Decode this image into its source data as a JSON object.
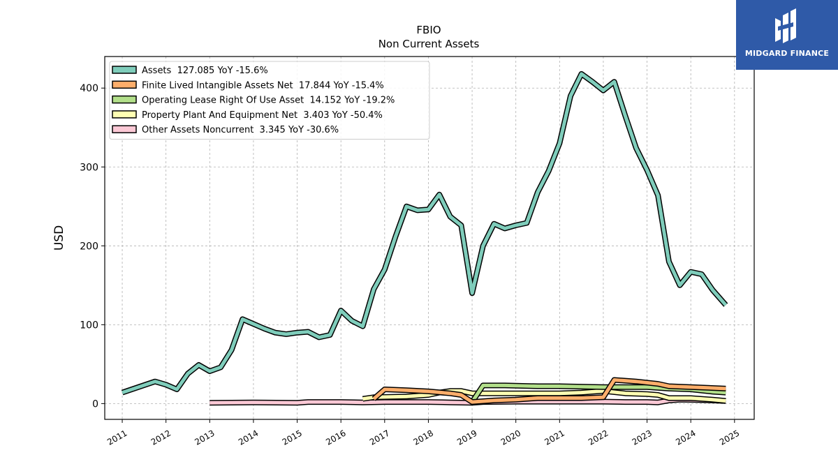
{
  "chart_data": {
    "type": "line",
    "title": "FBIO",
    "subtitle": "Non Current  Assets",
    "ylabel": "USD",
    "xlabel": "",
    "xlim": [
      2010.6,
      2025.45
    ],
    "ylim": [
      -20,
      440
    ],
    "yticks": [
      0,
      100,
      200,
      300,
      400
    ],
    "xticks": [
      "2011",
      "2012",
      "2013",
      "2014",
      "2015",
      "2016",
      "2017",
      "2018",
      "2019",
      "2020",
      "2021",
      "2022",
      "2023",
      "2024",
      "2025"
    ],
    "grid": true,
    "legend_position": "top-left",
    "series": [
      {
        "name": "Assets  127.085 YoY -15.6%",
        "color": "#7fcdbb",
        "points": [
          [
            2011.0,
            14
          ],
          [
            2011.75,
            28
          ],
          [
            2012.0,
            24
          ],
          [
            2012.25,
            18
          ],
          [
            2012.5,
            38
          ],
          [
            2012.75,
            49
          ],
          [
            2013.0,
            41
          ],
          [
            2013.25,
            46
          ],
          [
            2013.5,
            68
          ],
          [
            2013.75,
            107
          ],
          [
            2014.0,
            101
          ],
          [
            2014.25,
            95
          ],
          [
            2014.5,
            90
          ],
          [
            2014.75,
            88
          ],
          [
            2015.0,
            90
          ],
          [
            2015.25,
            91
          ],
          [
            2015.5,
            84
          ],
          [
            2015.75,
            87
          ],
          [
            2016.0,
            118
          ],
          [
            2016.25,
            105
          ],
          [
            2016.5,
            98
          ],
          [
            2016.75,
            145
          ],
          [
            2017.0,
            170
          ],
          [
            2017.25,
            212
          ],
          [
            2017.5,
            250
          ],
          [
            2017.75,
            245
          ],
          [
            2018.0,
            246
          ],
          [
            2018.25,
            265
          ],
          [
            2018.5,
            237
          ],
          [
            2018.75,
            226
          ],
          [
            2019.0,
            140
          ],
          [
            2019.25,
            200
          ],
          [
            2019.5,
            228
          ],
          [
            2019.75,
            222
          ],
          [
            2020.0,
            226
          ],
          [
            2020.25,
            229
          ],
          [
            2020.5,
            268
          ],
          [
            2020.75,
            295
          ],
          [
            2021.0,
            330
          ],
          [
            2021.25,
            390
          ],
          [
            2021.5,
            418
          ],
          [
            2021.75,
            408
          ],
          [
            2022.0,
            397
          ],
          [
            2022.25,
            408
          ],
          [
            2022.5,
            365
          ],
          [
            2022.75,
            324
          ],
          [
            2023.0,
            296
          ],
          [
            2023.25,
            264
          ],
          [
            2023.5,
            180
          ],
          [
            2023.75,
            150
          ],
          [
            2024.0,
            167
          ],
          [
            2024.25,
            164
          ],
          [
            2024.5,
            144
          ],
          [
            2024.8,
            125
          ]
        ]
      },
      {
        "name": "Finite Lived Intangible Assets Net  17.844 YoY -15.4%",
        "color": "#fdae6b",
        "points": [
          [
            2016.75,
            6
          ],
          [
            2017.0,
            18
          ],
          [
            2017.5,
            17
          ],
          [
            2018.0,
            15.5
          ],
          [
            2018.5,
            13
          ],
          [
            2018.75,
            11
          ],
          [
            2019.0,
            2
          ],
          [
            2019.5,
            4
          ],
          [
            2020.0,
            5
          ],
          [
            2020.5,
            7
          ],
          [
            2021.0,
            7
          ],
          [
            2021.5,
            7
          ],
          [
            2022.0,
            8
          ],
          [
            2022.25,
            30
          ],
          [
            2022.75,
            28
          ],
          [
            2023.25,
            25
          ],
          [
            2023.5,
            22
          ],
          [
            2024.0,
            21
          ],
          [
            2024.8,
            19
          ]
        ]
      },
      {
        "name": "Operating Lease Right Of Use Asset  14.152 YoY -19.2%",
        "color": "#b2df8a",
        "points": [
          [
            2019.0,
            2
          ],
          [
            2019.25,
            23
          ],
          [
            2019.75,
            23
          ],
          [
            2020.5,
            22
          ],
          [
            2021.0,
            22
          ],
          [
            2021.5,
            21.5
          ],
          [
            2022.0,
            21
          ],
          [
            2022.5,
            21
          ],
          [
            2023.0,
            21
          ],
          [
            2023.5,
            19
          ],
          [
            2024.0,
            18
          ],
          [
            2024.5,
            15
          ],
          [
            2024.8,
            14
          ]
        ]
      },
      {
        "name": "Property Plant And Equipment Net  3.403 YoY -50.4%",
        "color": "#ffffb3",
        "points": [
          [
            2016.5,
            6
          ],
          [
            2016.75,
            8
          ],
          [
            2017.5,
            9
          ],
          [
            2018.0,
            11
          ],
          [
            2018.25,
            14
          ],
          [
            2018.5,
            16
          ],
          [
            2018.75,
            16
          ],
          [
            2019.0,
            13
          ],
          [
            2019.5,
            13
          ],
          [
            2020.0,
            13
          ],
          [
            2020.5,
            13
          ],
          [
            2021.0,
            13
          ],
          [
            2021.5,
            14
          ],
          [
            2022.0,
            16
          ],
          [
            2022.5,
            13
          ],
          [
            2023.0,
            12
          ],
          [
            2023.25,
            11
          ],
          [
            2023.5,
            7
          ],
          [
            2024.0,
            7
          ],
          [
            2024.5,
            5
          ],
          [
            2024.8,
            3.4
          ]
        ]
      },
      {
        "name": "Other Assets Noncurrent  3.345 YoY -30.6%",
        "color": "#fbc8d5",
        "points": [
          [
            2013.0,
            1
          ],
          [
            2014.0,
            1.5
          ],
          [
            2015.0,
            1
          ],
          [
            2015.25,
            2
          ],
          [
            2016.0,
            2
          ],
          [
            2016.5,
            1.5
          ],
          [
            2017.0,
            2
          ],
          [
            2018.0,
            2
          ],
          [
            2018.5,
            1.5
          ],
          [
            2019.0,
            1
          ],
          [
            2019.25,
            2
          ],
          [
            2020.0,
            2.5
          ],
          [
            2021.0,
            2.5
          ],
          [
            2021.5,
            2.5
          ],
          [
            2022.0,
            2.5
          ],
          [
            2022.5,
            2
          ],
          [
            2023.0,
            2
          ],
          [
            2023.25,
            1.5
          ],
          [
            2023.5,
            4
          ],
          [
            2023.75,
            5
          ],
          [
            2024.0,
            4.8
          ],
          [
            2024.5,
            4
          ],
          [
            2024.8,
            3.3
          ]
        ]
      }
    ]
  },
  "logo": {
    "text": "MIDGARD FINANCE",
    "background": "#2f5aa8"
  }
}
